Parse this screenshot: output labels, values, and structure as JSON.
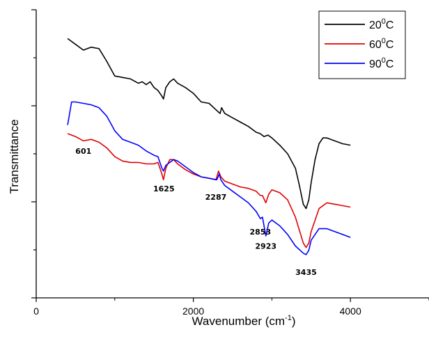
{
  "chart_data": {
    "type": "line",
    "xlabel": "Wavenumber (cm",
    "xlabel_sup": "-1",
    "xlabel_tail": ")",
    "ylabel": "Transmittance",
    "xlim": [
      0,
      5000
    ],
    "ylim": [
      0,
      1
    ],
    "x_ticks": [
      0,
      2000,
      4000
    ],
    "y_ticks_labeled": false,
    "legend_position": "top-right",
    "series": [
      {
        "name": "20",
        "name_sup": "0",
        "name_tail": "C",
        "color": "#000000",
        "x": [
          400,
          500,
          600,
          700,
          800,
          900,
          1000,
          1100,
          1200,
          1300,
          1350,
          1400,
          1450,
          1500,
          1550,
          1600,
          1620,
          1650,
          1700,
          1750,
          1800,
          1900,
          2000,
          2100,
          2200,
          2300,
          2340,
          2360,
          2400,
          2500,
          2600,
          2700,
          2800,
          2850,
          2900,
          2950,
          3000,
          3100,
          3200,
          3300,
          3350,
          3400,
          3435,
          3470,
          3500,
          3550,
          3600,
          3650,
          3700,
          3800,
          3900,
          4000
        ],
        "y": [
          0.9,
          0.88,
          0.86,
          0.87,
          0.865,
          0.82,
          0.77,
          0.765,
          0.76,
          0.745,
          0.75,
          0.74,
          0.75,
          0.73,
          0.72,
          0.7,
          0.69,
          0.73,
          0.75,
          0.76,
          0.745,
          0.73,
          0.71,
          0.68,
          0.675,
          0.65,
          0.64,
          0.66,
          0.64,
          0.625,
          0.61,
          0.595,
          0.575,
          0.57,
          0.56,
          0.565,
          0.555,
          0.53,
          0.5,
          0.45,
          0.39,
          0.325,
          0.31,
          0.34,
          0.4,
          0.48,
          0.535,
          0.555,
          0.555,
          0.545,
          0.535,
          0.53
        ]
      },
      {
        "name": "60",
        "name_sup": "0",
        "name_tail": "C",
        "color": "#e00000",
        "x": [
          400,
          500,
          600,
          700,
          800,
          900,
          1000,
          1100,
          1200,
          1300,
          1400,
          1500,
          1550,
          1600,
          1620,
          1650,
          1700,
          1750,
          1800,
          1900,
          2000,
          2100,
          2200,
          2287,
          2300,
          2320,
          2350,
          2400,
          2500,
          2600,
          2700,
          2800,
          2853,
          2880,
          2923,
          2960,
          3000,
          3100,
          3200,
          3300,
          3400,
          3435,
          3470,
          3500,
          3600,
          3700,
          3800,
          3900,
          4000
        ],
        "y": [
          0.57,
          0.56,
          0.545,
          0.55,
          0.54,
          0.52,
          0.49,
          0.475,
          0.47,
          0.47,
          0.465,
          0.465,
          0.47,
          0.43,
          0.41,
          0.45,
          0.48,
          0.48,
          0.465,
          0.445,
          0.43,
          0.42,
          0.415,
          0.41,
          0.42,
          0.44,
          0.42,
          0.405,
          0.395,
          0.385,
          0.38,
          0.37,
          0.355,
          0.355,
          0.33,
          0.36,
          0.375,
          0.365,
          0.34,
          0.28,
          0.19,
          0.175,
          0.19,
          0.23,
          0.31,
          0.33,
          0.325,
          0.32,
          0.315
        ]
      },
      {
        "name": "90",
        "name_sup": "0",
        "name_tail": "C",
        "color": "#0000ff",
        "x": [
          400,
          450,
          500,
          600,
          700,
          800,
          900,
          1000,
          1100,
          1200,
          1300,
          1400,
          1500,
          1550,
          1600,
          1620,
          1650,
          1700,
          1750,
          1800,
          1900,
          2000,
          2100,
          2200,
          2300,
          2330,
          2350,
          2400,
          2500,
          2600,
          2700,
          2800,
          2853,
          2880,
          2923,
          2960,
          3000,
          3100,
          3200,
          3300,
          3400,
          3435,
          3470,
          3500,
          3600,
          3700,
          3800,
          3900,
          4000
        ],
        "y": [
          0.6,
          0.68,
          0.68,
          0.675,
          0.67,
          0.66,
          0.63,
          0.58,
          0.55,
          0.54,
          0.53,
          0.51,
          0.495,
          0.49,
          0.45,
          0.44,
          0.46,
          0.47,
          0.48,
          0.475,
          0.455,
          0.435,
          0.42,
          0.415,
          0.41,
          0.43,
          0.41,
          0.39,
          0.37,
          0.35,
          0.33,
          0.3,
          0.275,
          0.28,
          0.215,
          0.26,
          0.27,
          0.25,
          0.22,
          0.18,
          0.155,
          0.15,
          0.165,
          0.2,
          0.24,
          0.24,
          0.23,
          0.22,
          0.21
        ]
      }
    ],
    "annotations": [
      {
        "text": "601",
        "x": 601,
        "y": 0.5
      },
      {
        "text": "1625",
        "x": 1625,
        "y": 0.37
      },
      {
        "text": "2287",
        "x": 2287,
        "y": 0.34
      },
      {
        "text": "2853",
        "x": 2853,
        "y": 0.22
      },
      {
        "text": "2923",
        "x": 2923,
        "y": 0.17
      },
      {
        "text": "3435",
        "x": 3435,
        "y": 0.08
      }
    ]
  }
}
